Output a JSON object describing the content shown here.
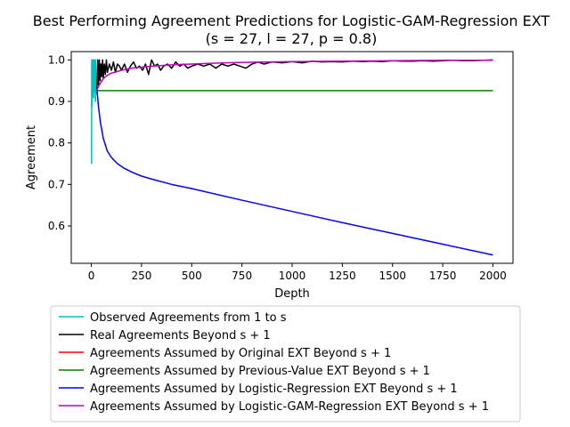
{
  "chart_data": {
    "type": "line",
    "title": "Best Performing Agreement Predictions for Logistic-GAM-Regression EXT",
    "subtitle": "(s = 27, l = 27, p = 0.8)",
    "xlabel": "Depth",
    "ylabel": "Agreement",
    "xlim": [
      -100,
      2100
    ],
    "ylim": [
      0.51,
      1.02
    ],
    "xticks": [
      0,
      250,
      500,
      750,
      1000,
      1250,
      1500,
      1750,
      2000
    ],
    "yticks": [
      0.6,
      0.7,
      0.8,
      0.9,
      1.0
    ],
    "xtick_labels": [
      "0",
      "250",
      "500",
      "750",
      "1000",
      "1250",
      "1500",
      "1750",
      "2000"
    ],
    "ytick_labels": [
      "0.6",
      "0.7",
      "0.8",
      "0.9",
      "1.0"
    ],
    "grid": false,
    "legend_position": "below plot",
    "series": [
      {
        "name": "Observed Agreements from 1 to s",
        "color": "#00bfbf",
        "x": [
          1,
          2,
          3,
          4,
          5,
          6,
          7,
          8,
          9,
          10,
          11,
          12,
          13,
          14,
          15,
          16,
          17,
          18,
          19,
          20,
          21,
          22,
          23,
          24,
          25,
          26,
          27
        ],
        "y": [
          0.75,
          1.0,
          1.0,
          0.889,
          1.0,
          1.0,
          0.917,
          0.929,
          1.0,
          1.0,
          0.909,
          1.0,
          0.923,
          0.933,
          1.0,
          0.938,
          0.944,
          1.0,
          1.0,
          0.9,
          0.905,
          1.0,
          0.917,
          0.92,
          0.923,
          0.926,
          0.926
        ]
      },
      {
        "name": "Real Agreements Beyond s + 1",
        "color": "#000000",
        "x": [
          28,
          32,
          36,
          40,
          44,
          48,
          52,
          56,
          60,
          65,
          70,
          75,
          80,
          90,
          100,
          110,
          120,
          130,
          140,
          150,
          165,
          180,
          195,
          210,
          225,
          240,
          255,
          270,
          285,
          300,
          315,
          330,
          345,
          360,
          380,
          400,
          420,
          440,
          460,
          480,
          500,
          530,
          560,
          590,
          620,
          650,
          680,
          710,
          740,
          770,
          800,
          830,
          860,
          900,
          950,
          1000,
          1050,
          1100,
          1150,
          1200,
          1250,
          1300,
          1350,
          1400,
          1450,
          1500,
          1550,
          1600,
          1650,
          1700,
          1750,
          1800,
          1850,
          1900,
          1950,
          2000
        ],
        "y": [
          0.93,
          1.0,
          0.94,
          1.0,
          0.95,
          0.99,
          0.96,
          1.0,
          0.955,
          0.99,
          0.965,
          1.0,
          0.97,
          0.99,
          0.975,
          0.995,
          0.97,
          0.99,
          0.985,
          0.975,
          0.99,
          0.97,
          0.985,
          0.995,
          0.98,
          0.985,
          0.975,
          0.99,
          0.965,
          1.0,
          0.985,
          0.99,
          0.975,
          0.985,
          0.99,
          0.98,
          0.995,
          0.985,
          0.99,
          0.98,
          0.985,
          0.99,
          0.985,
          0.99,
          0.98,
          0.99,
          0.985,
          0.99,
          0.985,
          0.98,
          0.99,
          0.995,
          0.99,
          0.995,
          0.993,
          0.996,
          0.993,
          0.997,
          0.995,
          0.996,
          0.995,
          0.997,
          0.996,
          0.997,
          0.996,
          0.998,
          0.997,
          0.997,
          0.998,
          0.997,
          0.998,
          0.999,
          0.998,
          0.998,
          0.999,
          1.0
        ]
      },
      {
        "name": "Agreements Assumed by Original EXT Beyond s + 1",
        "color": "#ff0000",
        "x": [],
        "y": []
      },
      {
        "name": "Agreements Assumed by Previous-Value EXT Beyond s + 1",
        "color": "#008000",
        "x": [
          28,
          2000
        ],
        "y": [
          0.926,
          0.926
        ]
      },
      {
        "name": "Agreements Assumed by Logistic-Regression EXT Beyond s + 1",
        "color": "#0000ff",
        "x": [
          28,
          35,
          45,
          60,
          80,
          100,
          130,
          160,
          200,
          250,
          300,
          400,
          500,
          750,
          1000,
          1250,
          1500,
          1750,
          2000
        ],
        "y": [
          0.93,
          0.89,
          0.85,
          0.81,
          0.78,
          0.765,
          0.75,
          0.74,
          0.73,
          0.72,
          0.713,
          0.7,
          0.69,
          0.662,
          0.635,
          0.608,
          0.582,
          0.556,
          0.53
        ]
      },
      {
        "name": "Agreements Assumed by Logistic-GAM-Regression EXT Beyond s + 1",
        "color": "#bf00bf",
        "x": [
          28,
          40,
          60,
          80,
          100,
          150,
          200,
          300,
          400,
          500,
          600,
          750,
          1000,
          1250,
          1500,
          1750,
          2000
        ],
        "y": [
          0.928,
          0.94,
          0.955,
          0.963,
          0.968,
          0.975,
          0.98,
          0.985,
          0.988,
          0.99,
          0.992,
          0.994,
          0.996,
          0.997,
          0.998,
          0.999,
          0.999
        ]
      }
    ]
  }
}
